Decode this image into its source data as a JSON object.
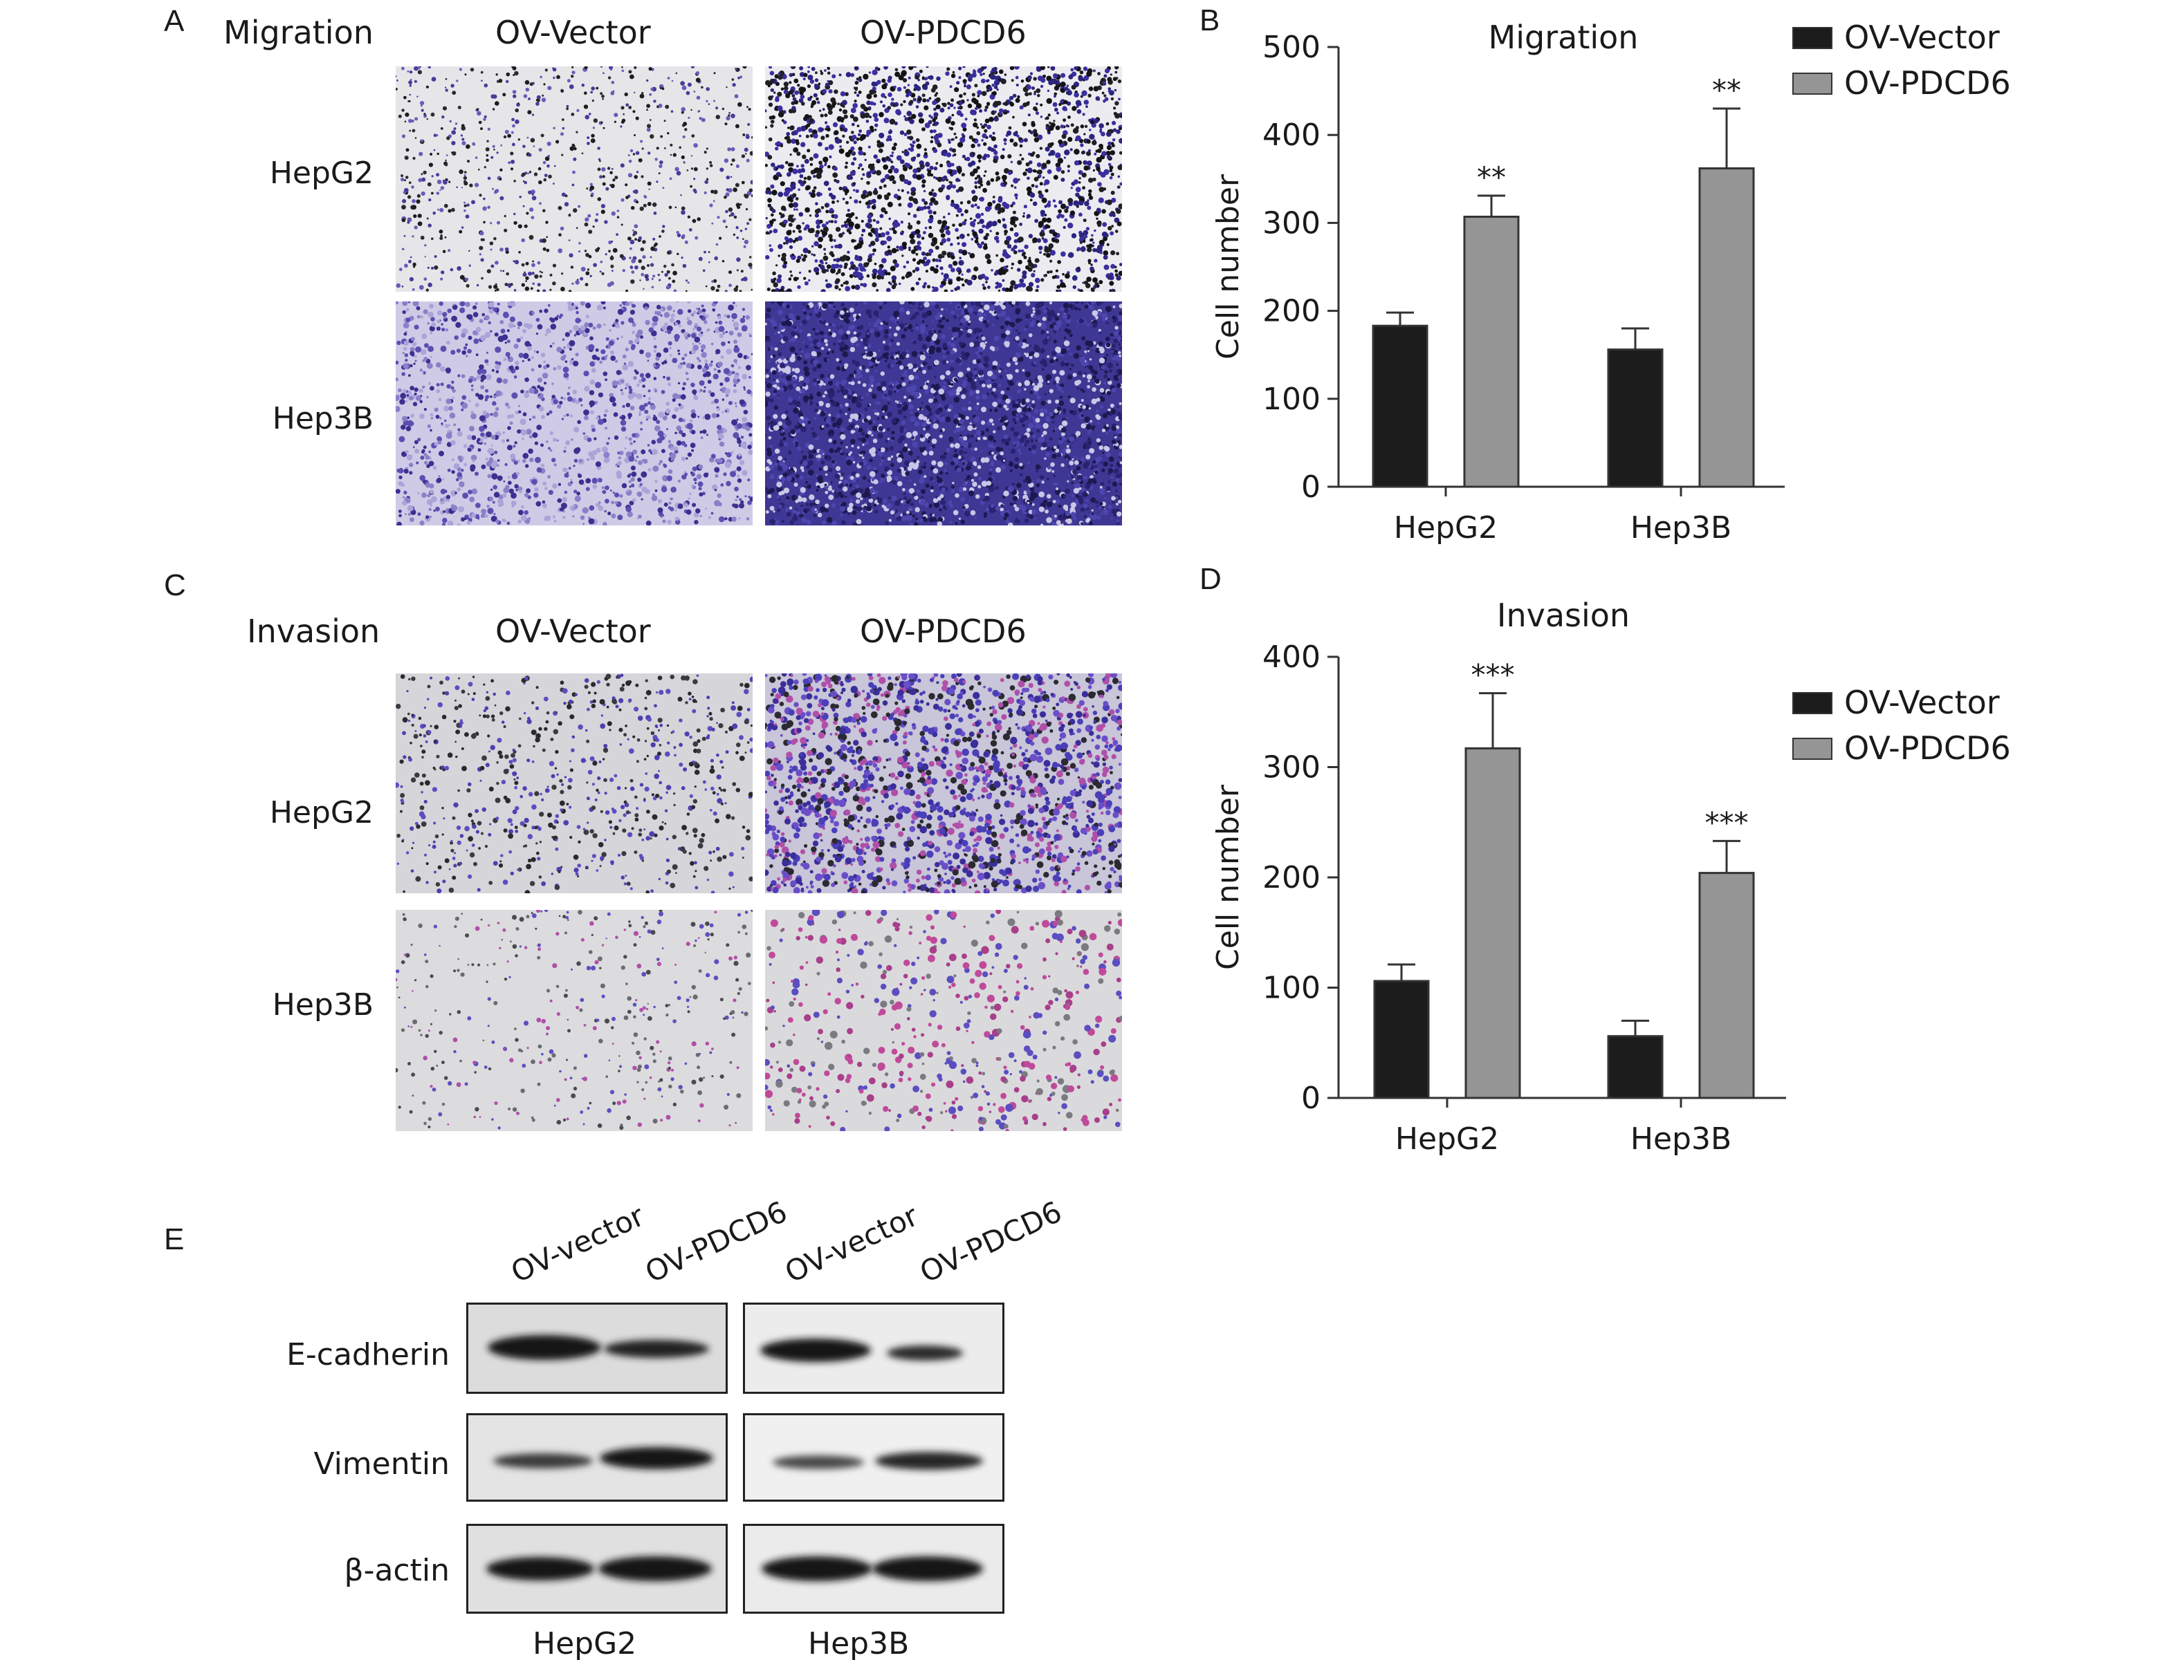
{
  "panels": {
    "A": {
      "letter": "A",
      "title": "Migration",
      "col_labels": [
        "OV-Vector",
        "OV-PDCD6"
      ],
      "row_labels": [
        "HepG2",
        "Hep3B"
      ]
    },
    "C": {
      "letter": "C",
      "title": "Invasion",
      "col_labels": [
        "OV-Vector",
        "OV-PDCD6"
      ],
      "row_labels": [
        "HepG2",
        "Hep3B"
      ]
    },
    "E": {
      "letter": "E",
      "lane_labels": [
        "OV-vector",
        "OV-PDCD6",
        "OV-vector",
        "OV-PDCD6"
      ],
      "row_labels": [
        "E-cadherin",
        "Vimentin",
        "β-actin"
      ],
      "group_labels": [
        "HepG2",
        "Hep3B"
      ]
    }
  },
  "chart_data": [
    {
      "panel": "B",
      "type": "bar",
      "title": "Migration",
      "ylabel": "Cell number",
      "ylim": [
        0,
        500
      ],
      "yticks": [
        0,
        100,
        200,
        300,
        400,
        500
      ],
      "categories": [
        "HepG2",
        "Hep3B"
      ],
      "series": [
        {
          "name": "OV-Vector",
          "values": [
            183,
            156
          ],
          "errors": [
            15,
            24
          ],
          "color": "#1c1c1c"
        },
        {
          "name": "OV-PDCD6",
          "values": [
            307,
            362
          ],
          "errors": [
            24,
            68
          ],
          "color": "#959595"
        }
      ],
      "annotations": [
        {
          "category": "HepG2",
          "series": "OV-PDCD6",
          "text": "**"
        },
        {
          "category": "Hep3B",
          "series": "OV-PDCD6",
          "text": "**"
        }
      ],
      "legend": "top-right"
    },
    {
      "panel": "D",
      "type": "bar",
      "title": "Invasion",
      "ylabel": "Cell number",
      "ylim": [
        0,
        400
      ],
      "yticks": [
        0,
        100,
        200,
        300,
        400
      ],
      "categories": [
        "HepG2",
        "Hep3B"
      ],
      "series": [
        {
          "name": "OV-Vector",
          "values": [
            106,
            56
          ],
          "errors": [
            15,
            14
          ],
          "color": "#1c1c1c"
        },
        {
          "name": "OV-PDCD6",
          "values": [
            317,
            204
          ],
          "errors": [
            50,
            29
          ],
          "color": "#959595"
        }
      ],
      "annotations": [
        {
          "category": "HepG2",
          "series": "OV-PDCD6",
          "text": "***"
        },
        {
          "category": "Hep3B",
          "series": "OV-PDCD6",
          "text": "***"
        }
      ],
      "legend": "top-right"
    }
  ]
}
